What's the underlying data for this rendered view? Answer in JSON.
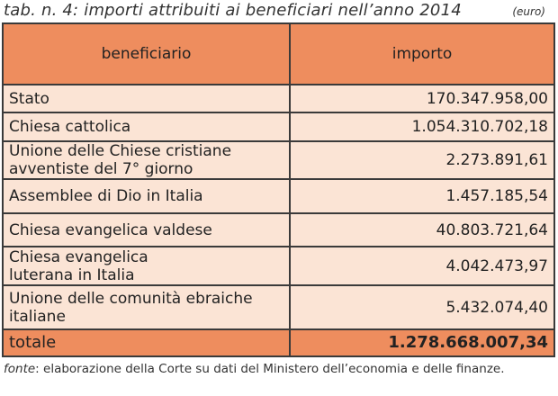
{
  "title": "tab. n. 4: importi attribuiti ai beneficiari nell’anno 2014",
  "unit": "(euro)",
  "headers": {
    "beneficiary": "beneficiario",
    "amount": "importo"
  },
  "rows": [
    {
      "name": "Stato",
      "value": "170.347.958,00"
    },
    {
      "name": "Chiesa cattolica",
      "value": "1.054.310.702,18"
    },
    {
      "name": "Unione delle Chiese cristiane avventiste del 7° giorno",
      "value": "2.273.891,61"
    },
    {
      "name": "Assemblee di Dio in Italia",
      "value": "1.457.185,54"
    },
    {
      "name": "Chiesa evangelica valdese",
      "value": "40.803.721,64"
    },
    {
      "name": "Chiesa evangelica luterana in Italia",
      "value": "4.042.473,97"
    },
    {
      "name": "Unione delle comunità ebraiche italiane",
      "value": "5.432.074,40"
    }
  ],
  "total": {
    "label": "totale",
    "value": "1.278.668.007,34"
  },
  "note": {
    "label": "fonte",
    "text": ": elaborazione della Corte su dati del Ministero dell’economia e delle finanze."
  }
}
